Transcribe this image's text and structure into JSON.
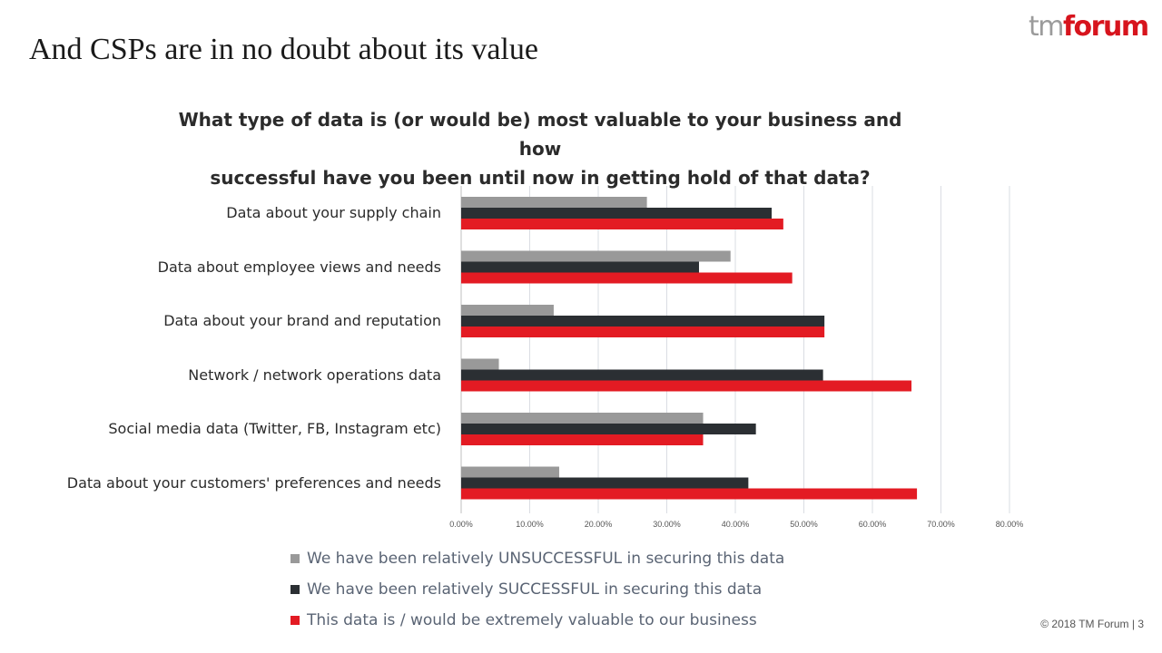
{
  "slide": {
    "title": "And CSPs are in no doubt about its value",
    "logo_tm": "tm",
    "logo_forum": "forum",
    "footer": "© 2018 TM Forum | 3"
  },
  "chart_data": {
    "type": "bar",
    "orientation": "horizontal",
    "title_line1": "What type of data is (or would be) most valuable to your business and how",
    "title_line2": "successful have you been until now in getting hold of that data?",
    "categories": [
      "Data about your supply chain",
      "Data about employee views and needs",
      "Data about your brand and reputation",
      "Network / network operations data",
      "Social media data (Twitter, FB, Instagram etc)",
      "Data about your customers' preferences and needs"
    ],
    "series": [
      {
        "name": "We have been relatively UNSUCCESSFUL in securing this data",
        "color": "#999999",
        "values": [
          27.1,
          39.3,
          13.5,
          5.5,
          35.3,
          14.3
        ]
      },
      {
        "name": "We have been relatively SUCCESSFUL in securing this data",
        "color": "#2b2f33",
        "values": [
          45.3,
          34.7,
          53.0,
          52.8,
          43.0,
          41.9
        ]
      },
      {
        "name": "This data is / would be extremely valuable to our business",
        "color": "#e31b23",
        "values": [
          47.0,
          48.3,
          53.0,
          65.7,
          35.3,
          66.5
        ]
      }
    ],
    "xticks": [
      "0.00%",
      "10.00%",
      "20.00%",
      "30.00%",
      "40.00%",
      "50.00%",
      "60.00%",
      "70.00%",
      "80.00%"
    ],
    "xlim": [
      0,
      80
    ],
    "grid": true,
    "legend_position": "bottom"
  }
}
